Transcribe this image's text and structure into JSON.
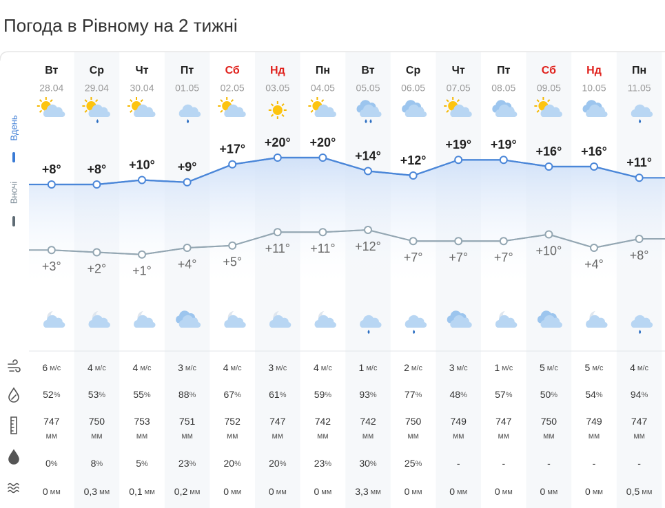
{
  "title": "Погода в Рівному на 2 тижні",
  "day_label": "Вдень",
  "night_label": "Вночі",
  "units": {
    "wind": "м/с",
    "humidity": "%",
    "pressure": "мм",
    "precip_prob": "%",
    "precip": "мм"
  },
  "days": [
    {
      "weekday": "Вт",
      "date": "28.04",
      "weekend": false,
      "day_temp": 8,
      "day_temp_label": "+8°",
      "night_temp": 3,
      "night_temp_label": "+3°",
      "wind": 6,
      "humidity": 52,
      "pressure": 747,
      "precip_prob": 0,
      "precip": "0"
    },
    {
      "weekday": "Ср",
      "date": "29.04",
      "weekend": false,
      "day_temp": 8,
      "day_temp_label": "+8°",
      "night_temp": 2,
      "night_temp_label": "+2°",
      "wind": 4,
      "humidity": 53,
      "pressure": 750,
      "precip_prob": 8,
      "precip": "0,3"
    },
    {
      "weekday": "Чт",
      "date": "30.04",
      "weekend": false,
      "day_temp": 10,
      "day_temp_label": "+10°",
      "night_temp": 1,
      "night_temp_label": "+1°",
      "wind": 4,
      "humidity": 55,
      "pressure": 753,
      "precip_prob": 5,
      "precip": "0,1"
    },
    {
      "weekday": "Пт",
      "date": "01.05",
      "weekend": false,
      "day_temp": 9,
      "day_temp_label": "+9°",
      "night_temp": 4,
      "night_temp_label": "+4°",
      "wind": 3,
      "humidity": 88,
      "pressure": 751,
      "precip_prob": 23,
      "precip": "0,2"
    },
    {
      "weekday": "Сб",
      "date": "02.05",
      "weekend": true,
      "day_temp": 17,
      "day_temp_label": "+17°",
      "night_temp": 5,
      "night_temp_label": "+5°",
      "wind": 4,
      "humidity": 67,
      "pressure": 752,
      "precip_prob": 20,
      "precip": "0"
    },
    {
      "weekday": "Нд",
      "date": "03.05",
      "weekend": true,
      "day_temp": 20,
      "day_temp_label": "+20°",
      "night_temp": 11,
      "night_temp_label": "+11°",
      "wind": 3,
      "humidity": 61,
      "pressure": 747,
      "precip_prob": 20,
      "precip": "0"
    },
    {
      "weekday": "Пн",
      "date": "04.05",
      "weekend": false,
      "day_temp": 20,
      "day_temp_label": "+20°",
      "night_temp": 11,
      "night_temp_label": "+11°",
      "wind": 4,
      "humidity": 59,
      "pressure": 742,
      "precip_prob": 23,
      "precip": "0"
    },
    {
      "weekday": "Вт",
      "date": "05.05",
      "weekend": false,
      "day_temp": 14,
      "day_temp_label": "+14°",
      "night_temp": 12,
      "night_temp_label": "+12°",
      "wind": 1,
      "humidity": 93,
      "pressure": 742,
      "precip_prob": 30,
      "precip": "3,3"
    },
    {
      "weekday": "Ср",
      "date": "06.05",
      "weekend": false,
      "day_temp": 12,
      "day_temp_label": "+12°",
      "night_temp": 7,
      "night_temp_label": "+7°",
      "wind": 2,
      "humidity": 77,
      "pressure": 750,
      "precip_prob": 25,
      "precip": "0"
    },
    {
      "weekday": "Чт",
      "date": "07.05",
      "weekend": false,
      "day_temp": 19,
      "day_temp_label": "+19°",
      "night_temp": 7,
      "night_temp_label": "+7°",
      "wind": 3,
      "humidity": 48,
      "pressure": 749,
      "precip_prob": "-",
      "precip": "0"
    },
    {
      "weekday": "Пт",
      "date": "08.05",
      "weekend": false,
      "day_temp": 19,
      "day_temp_label": "+19°",
      "night_temp": 7,
      "night_temp_label": "+7°",
      "wind": 1,
      "humidity": 57,
      "pressure": 747,
      "precip_prob": "-",
      "precip": "0"
    },
    {
      "weekday": "Сб",
      "date": "09.05",
      "weekend": true,
      "day_temp": 16,
      "day_temp_label": "+16°",
      "night_temp": 10,
      "night_temp_label": "+10°",
      "wind": 5,
      "humidity": 50,
      "pressure": 750,
      "precip_prob": "-",
      "precip": "0"
    },
    {
      "weekday": "Нд",
      "date": "10.05",
      "weekend": true,
      "day_temp": 16,
      "day_temp_label": "+16°",
      "night_temp": 4,
      "night_temp_label": "+4°",
      "wind": 5,
      "humidity": 54,
      "pressure": 749,
      "precip_prob": "-",
      "precip": "0"
    },
    {
      "weekday": "Пн",
      "date": "11.05",
      "weekend": false,
      "day_temp": 11,
      "day_temp_label": "+11°",
      "night_temp": 8,
      "night_temp_label": "+8°",
      "wind": 4,
      "humidity": 94,
      "pressure": 747,
      "precip_prob": "-",
      "precip": "0,5"
    }
  ]
}
